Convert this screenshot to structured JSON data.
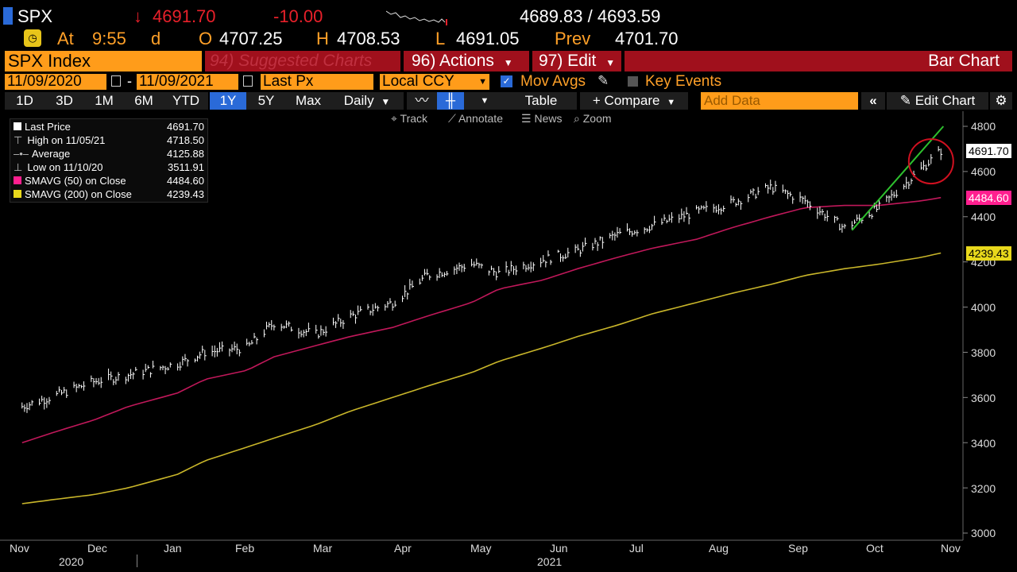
{
  "quote": {
    "ticker": "SPX",
    "last": "4691.70",
    "change": "-10.00",
    "bid_ask": "4689.83 / 4693.59",
    "at_label": "At",
    "time": "9:55",
    "time_suffix": "d",
    "open_label": "O",
    "open": "4707.25",
    "high_label": "H",
    "high": "4708.53",
    "low_label": "L",
    "low": "4691.05",
    "prev_label": "Prev",
    "prev": "4701.70"
  },
  "toolbar": {
    "security": "SPX Index",
    "suggested": "94) Suggested Charts",
    "actions": "96) Actions",
    "edit": "97) Edit",
    "chart_type": "Bar Chart"
  },
  "settings": {
    "start_date": "11/09/2020",
    "date_sep": "-",
    "end_date": "11/09/2021",
    "field": "Last Px",
    "currency": "Local CCY",
    "mov_avgs": "Mov Avgs",
    "key_events": "Key Events"
  },
  "periods": [
    "1D",
    "3D",
    "1M",
    "6M",
    "YTD",
    "1Y",
    "5Y",
    "Max"
  ],
  "selected_period": "1Y",
  "frequency": "Daily",
  "table_label": "Table",
  "compare_label": "+ Compare",
  "add_data_placeholder": "Add Data",
  "edit_chart": "Edit Chart",
  "tools": {
    "track": "Track",
    "annotate": "Annotate",
    "news": "News",
    "zoom": "Zoom"
  },
  "legend": [
    {
      "label": "Last Price",
      "value": "4691.70",
      "color": "#ffffff"
    },
    {
      "label": "High on 11/05/21",
      "value": "4718.50",
      "color": "#bbbbbb"
    },
    {
      "label": "Average",
      "value": "4125.88",
      "color": "#bbbbbb"
    },
    {
      "label": "Low on 11/10/20",
      "value": "3511.91",
      "color": "#bbbbbb"
    },
    {
      "label": "SMAVG (50)  on Close",
      "value": "4484.60",
      "color": "#ff1f8f"
    },
    {
      "label": "SMAVG (200)  on Close",
      "value": "4239.43",
      "color": "#e8d81c"
    }
  ],
  "colors": {
    "price": "#ffffff",
    "sma50": "#c0185a",
    "sma200": "#c9b62a",
    "trend": "#2ec02e",
    "circle": "#d01020",
    "accent": "#ff9c1a"
  },
  "chart_data": {
    "type": "bar",
    "x": [
      "2020-11-02",
      "2020-11-16",
      "2020-12-01",
      "2020-12-15",
      "2021-01-04",
      "2021-01-15",
      "2021-02-01",
      "2021-02-12",
      "2021-03-01",
      "2021-03-15",
      "2021-04-01",
      "2021-04-15",
      "2021-05-03",
      "2021-05-14",
      "2021-06-01",
      "2021-06-15",
      "2021-07-01",
      "2021-07-15",
      "2021-08-02",
      "2021-08-16",
      "2021-09-01",
      "2021-09-15",
      "2021-10-01",
      "2021-10-15",
      "2021-11-01",
      "2021-11-09"
    ],
    "series": [
      {
        "name": "Last Price",
        "values": [
          3560,
          3610,
          3670,
          3700,
          3750,
          3800,
          3820,
          3930,
          3880,
          3960,
          4020,
          4140,
          4190,
          4150,
          4210,
          4250,
          4320,
          4360,
          4420,
          4460,
          4530,
          4470,
          4350,
          4440,
          4610,
          4691.7
        ]
      },
      {
        "name": "SMAVG (50)",
        "values": [
          3400,
          3450,
          3500,
          3560,
          3620,
          3680,
          3720,
          3780,
          3830,
          3870,
          3910,
          3960,
          4020,
          4080,
          4120,
          4170,
          4220,
          4260,
          4300,
          4350,
          4400,
          4440,
          4450,
          4450,
          4470,
          4484.6
        ]
      },
      {
        "name": "SMAVG (200)",
        "values": [
          3130,
          3150,
          3170,
          3200,
          3260,
          3320,
          3380,
          3420,
          3480,
          3540,
          3600,
          3650,
          3710,
          3760,
          3820,
          3870,
          3920,
          3970,
          4020,
          4060,
          4100,
          4140,
          4170,
          4190,
          4220,
          4239.43
        ]
      }
    ],
    "y_ticks": [
      "4800",
      "4600",
      "4400",
      "4200",
      "4000",
      "3800",
      "3600",
      "3400",
      "3200",
      "3000"
    ],
    "x_ticks": [
      "Nov",
      "Dec",
      "Jan",
      "Feb",
      "Mar",
      "Apr",
      "May",
      "Jun",
      "Jul",
      "Aug",
      "Sep",
      "Oct",
      "Nov"
    ],
    "years": [
      "2020",
      "2021"
    ],
    "ylim": [
      3000,
      4800
    ],
    "price_tags": {
      "last": "4691.70",
      "sma50": "4484.60",
      "sma200": "4239.43"
    },
    "grid": false,
    "legend_position": "top-left"
  }
}
